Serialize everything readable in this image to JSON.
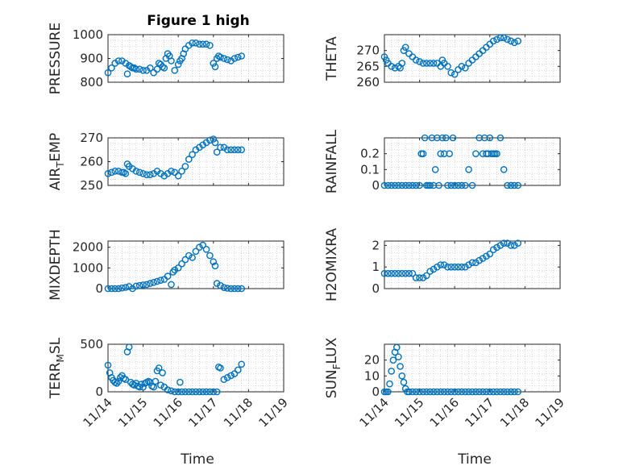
{
  "figure": {
    "title": "Figure 1 high",
    "xlabel": "Time",
    "colors": {
      "marker": "#0072BD",
      "axes": "#262626",
      "grid": "#b8b8b8"
    }
  },
  "chart_data": [
    {
      "type": "scatter",
      "ylabel": "PRESSURE",
      "ylim": [
        800,
        1000
      ],
      "yticks": [
        "800",
        "900",
        "1000"
      ],
      "xlim": [
        0,
        5
      ],
      "x": [
        0,
        0.1,
        0.2,
        0.3,
        0.4,
        0.5,
        0.55,
        0.6,
        0.65,
        0.7,
        0.75,
        0.8,
        0.9,
        1,
        1.1,
        1.2,
        1.3,
        1.4,
        1.45,
        1.5,
        1.55,
        1.6,
        1.65,
        1.7,
        1.75,
        1.8,
        1.9,
        2,
        2.05,
        2.1,
        2.15,
        2.2,
        2.3,
        2.4,
        2.5,
        2.6,
        2.7,
        2.8,
        2.9,
        3.0,
        3.05,
        3.1,
        3.15,
        3.2,
        3.3,
        3.4,
        3.5,
        3.6,
        3.7,
        3.8
      ],
      "values": [
        840,
        860,
        880,
        890,
        890,
        880,
        835,
        870,
        865,
        860,
        860,
        855,
        855,
        850,
        850,
        860,
        840,
        855,
        880,
        875,
        865,
        860,
        900,
        920,
        910,
        890,
        850,
        875,
        890,
        900,
        920,
        940,
        955,
        965,
        965,
        960,
        960,
        960,
        955,
        880,
        865,
        900,
        910,
        905,
        900,
        895,
        890,
        900,
        905,
        910
      ],
      "tick_labels_x": [
        "11/14",
        "11/15",
        "11/16",
        "11/17",
        "11/18",
        "11/19"
      ],
      "show_x_tick_labels": false
    },
    {
      "type": "scatter",
      "ylabel": "THETA",
      "ylim": [
        260,
        275
      ],
      "yticks": [
        "260",
        "265",
        "270"
      ],
      "xlim": [
        0,
        5
      ],
      "x": [
        0,
        0.05,
        0.1,
        0.2,
        0.3,
        0.4,
        0.45,
        0.5,
        0.55,
        0.6,
        0.7,
        0.8,
        0.9,
        1,
        1.1,
        1.2,
        1.3,
        1.4,
        1.5,
        1.6,
        1.65,
        1.7,
        1.8,
        1.9,
        2,
        2.1,
        2.2,
        2.3,
        2.4,
        2.5,
        2.6,
        2.7,
        2.8,
        2.9,
        3,
        3.1,
        3.2,
        3.3,
        3.4,
        3.5,
        3.6,
        3.7,
        3.8
      ],
      "values": [
        268,
        267,
        266,
        265,
        264.5,
        265,
        264.5,
        266,
        270,
        271,
        269,
        268,
        267,
        266.5,
        266,
        266,
        266,
        266,
        266,
        265,
        267,
        266,
        265,
        263,
        262.5,
        264,
        265,
        264.5,
        266,
        267,
        268,
        269,
        270,
        271,
        272,
        273,
        273.5,
        274,
        274,
        273.5,
        273,
        272.5,
        273
      ],
      "tick_labels_x": [
        "11/14",
        "11/15",
        "11/16",
        "11/17",
        "11/18",
        "11/19"
      ],
      "show_x_tick_labels": false
    },
    {
      "type": "scatter",
      "ylabel": "AIR_TEMP",
      "ylabel_main": "AIR",
      "ylabel_sub": "T",
      "ylabel_rest": "EMP",
      "ylim": [
        250,
        270
      ],
      "yticks": [
        "250",
        "260",
        "270"
      ],
      "xlim": [
        0,
        5
      ],
      "x": [
        0,
        0.1,
        0.2,
        0.3,
        0.4,
        0.45,
        0.5,
        0.55,
        0.6,
        0.7,
        0.8,
        0.9,
        1,
        1.1,
        1.2,
        1.3,
        1.4,
        1.5,
        1.6,
        1.7,
        1.8,
        1.9,
        2,
        2.1,
        2.2,
        2.3,
        2.4,
        2.5,
        2.6,
        2.7,
        2.8,
        2.9,
        3,
        3.05,
        3.1,
        3.2,
        3.3,
        3.4,
        3.5,
        3.6,
        3.7,
        3.8
      ],
      "values": [
        255,
        255.5,
        256,
        256,
        255.5,
        255.5,
        255,
        259,
        258,
        257,
        256,
        255.5,
        255,
        254.5,
        254.5,
        255,
        256,
        255,
        254,
        255,
        256,
        255.5,
        254,
        256,
        258,
        261,
        263,
        265,
        266,
        267,
        268,
        269,
        269.5,
        268,
        264,
        266,
        266,
        265,
        265,
        265,
        265,
        265
      ],
      "tick_labels_x": [
        "11/14",
        "11/15",
        "11/16",
        "11/17",
        "11/18",
        "11/19"
      ],
      "show_x_tick_labels": false
    },
    {
      "type": "scatter",
      "ylabel": "RAINFALL",
      "ylim": [
        0,
        0.3
      ],
      "yticks": [
        "0",
        "0.1",
        "0.2"
      ],
      "xlim": [
        0,
        5
      ],
      "x": [
        0,
        0.1,
        0.2,
        0.3,
        0.4,
        0.5,
        0.6,
        0.7,
        0.8,
        0.9,
        1.0,
        1.05,
        1.1,
        1.15,
        1.2,
        1.25,
        1.3,
        1.35,
        1.4,
        1.45,
        1.5,
        1.55,
        1.6,
        1.65,
        1.7,
        1.75,
        1.8,
        1.85,
        1.9,
        1.95,
        2.0,
        2.1,
        2.2,
        2.3,
        2.4,
        2.5,
        2.6,
        2.7,
        2.8,
        2.85,
        2.9,
        2.95,
        3.0,
        3.05,
        3.1,
        3.15,
        3.2,
        3.3,
        3.4,
        3.5,
        3.6,
        3.7,
        3.8
      ],
      "values": [
        0,
        0,
        0,
        0,
        0,
        0,
        0,
        0,
        0,
        0,
        0,
        0.2,
        0.2,
        0.3,
        0,
        0,
        0,
        0.3,
        0,
        0.1,
        0.3,
        0,
        0.2,
        0.3,
        0.2,
        0.3,
        0,
        0.2,
        0,
        0.3,
        0,
        0,
        0,
        0,
        0.1,
        0,
        0.2,
        0.3,
        0.2,
        0.3,
        0.2,
        0.2,
        0.3,
        0.2,
        0.2,
        0.2,
        0.2,
        0.3,
        0.1,
        0,
        0,
        0,
        0
      ],
      "tick_labels_x": [
        "11/14",
        "11/15",
        "11/16",
        "11/17",
        "11/18",
        "11/19"
      ],
      "show_x_tick_labels": false
    },
    {
      "type": "scatter",
      "ylabel": "MIXDEPTH",
      "ylim": [
        0,
        2300
      ],
      "yticks": [
        "0",
        "1000",
        "2000"
      ],
      "xlim": [
        0,
        5
      ],
      "x": [
        0,
        0.1,
        0.2,
        0.3,
        0.4,
        0.5,
        0.6,
        0.7,
        0.8,
        0.9,
        1,
        1.1,
        1.2,
        1.3,
        1.4,
        1.5,
        1.6,
        1.7,
        1.8,
        1.85,
        1.9,
        2,
        2.1,
        2.2,
        2.3,
        2.4,
        2.5,
        2.6,
        2.7,
        2.8,
        2.9,
        3.0,
        3.05,
        3.1,
        3.2,
        3.3,
        3.4,
        3.5,
        3.6,
        3.7,
        3.8
      ],
      "values": [
        0,
        0,
        0,
        0,
        30,
        60,
        100,
        0,
        120,
        150,
        180,
        200,
        250,
        300,
        350,
        400,
        450,
        600,
        200,
        800,
        900,
        1000,
        1200,
        1400,
        1600,
        1500,
        1800,
        2000,
        2100,
        1900,
        1600,
        1300,
        1100,
        250,
        150,
        50,
        20,
        0,
        0,
        0,
        0
      ],
      "tick_labels_x": [
        "11/14",
        "11/15",
        "11/16",
        "11/17",
        "11/18",
        "11/19"
      ],
      "show_x_tick_labels": false
    },
    {
      "type": "scatter",
      "ylabel": "H2OMIXRA",
      "ylim": [
        0,
        2.2
      ],
      "yticks": [
        "0",
        "1",
        "2"
      ],
      "xlim": [
        0,
        5
      ],
      "x": [
        0,
        0.1,
        0.2,
        0.3,
        0.4,
        0.5,
        0.6,
        0.7,
        0.8,
        0.9,
        1,
        1.1,
        1.2,
        1.3,
        1.4,
        1.5,
        1.6,
        1.7,
        1.8,
        1.9,
        2,
        2.1,
        2.2,
        2.3,
        2.4,
        2.5,
        2.6,
        2.7,
        2.8,
        2.9,
        3,
        3.1,
        3.2,
        3.3,
        3.4,
        3.5,
        3.6,
        3.7,
        3.8
      ],
      "values": [
        0.7,
        0.7,
        0.7,
        0.7,
        0.7,
        0.7,
        0.7,
        0.7,
        0.7,
        0.5,
        0.5,
        0.5,
        0.6,
        0.8,
        0.9,
        1.0,
        1.1,
        1.1,
        1.0,
        1.0,
        1.0,
        1.0,
        1.0,
        1.0,
        1.1,
        1.2,
        1.2,
        1.3,
        1.4,
        1.5,
        1.6,
        1.8,
        1.9,
        2.0,
        2.1,
        2.1,
        2.0,
        2.0,
        2.1
      ],
      "tick_labels_x": [
        "11/14",
        "11/15",
        "11/16",
        "11/17",
        "11/18",
        "11/19"
      ],
      "show_x_tick_labels": false
    },
    {
      "type": "scatter",
      "ylabel": "TERR_MSL",
      "ylabel_main": "TERR",
      "ylabel_sub": "M",
      "ylabel_rest": "SL",
      "ylim": [
        0,
        500
      ],
      "yticks": [
        "0",
        "500"
      ],
      "xlim": [
        0,
        5
      ],
      "x": [
        0,
        0.05,
        0.1,
        0.15,
        0.2,
        0.25,
        0.3,
        0.35,
        0.4,
        0.45,
        0.5,
        0.55,
        0.6,
        0.65,
        0.7,
        0.75,
        0.8,
        0.85,
        0.9,
        0.95,
        1.0,
        1.05,
        1.1,
        1.15,
        1.2,
        1.25,
        1.3,
        1.35,
        1.4,
        1.45,
        1.5,
        1.55,
        1.6,
        1.7,
        1.8,
        1.9,
        2.0,
        2.05,
        2.1,
        2.2,
        2.3,
        2.4,
        2.5,
        2.6,
        2.7,
        2.8,
        2.9,
        3.0,
        3.1,
        3.15,
        3.2,
        3.3,
        3.4,
        3.5,
        3.6,
        3.7,
        3.8
      ],
      "values": [
        280,
        200,
        150,
        120,
        100,
        90,
        110,
        150,
        170,
        140,
        130,
        420,
        470,
        100,
        80,
        70,
        90,
        60,
        50,
        80,
        50,
        90,
        100,
        110,
        100,
        60,
        50,
        110,
        220,
        250,
        70,
        200,
        50,
        20,
        10,
        0,
        0,
        100,
        0,
        0,
        0,
        0,
        0,
        0,
        0,
        0,
        0,
        0,
        0,
        260,
        250,
        130,
        150,
        170,
        190,
        230,
        290
      ],
      "tick_labels_x": [
        "11/14",
        "11/15",
        "11/16",
        "11/17",
        "11/18",
        "11/19"
      ],
      "show_x_tick_labels": true
    },
    {
      "type": "scatter",
      "ylabel": "SUN_FLUX",
      "ylabel_main": "SUN",
      "ylabel_sub": "F",
      "ylabel_rest": "LUX",
      "ylim": [
        0,
        30
      ],
      "yticks": [
        "0",
        "10",
        "20"
      ],
      "xlim": [
        0,
        5
      ],
      "x": [
        0,
        0.05,
        0.1,
        0.15,
        0.2,
        0.25,
        0.3,
        0.35,
        0.4,
        0.45,
        0.5,
        0.55,
        0.6,
        0.65,
        0.7,
        0.8,
        0.9,
        1,
        1.1,
        1.2,
        1.3,
        1.4,
        1.5,
        1.6,
        1.7,
        1.8,
        1.9,
        2,
        2.1,
        2.2,
        2.3,
        2.4,
        2.5,
        2.6,
        2.7,
        2.8,
        2.9,
        3,
        3.1,
        3.2,
        3.3,
        3.4,
        3.5,
        3.6,
        3.7,
        3.8
      ],
      "values": [
        0,
        0,
        0,
        5,
        13,
        20,
        25,
        28,
        22,
        16,
        10,
        6,
        2,
        0,
        0,
        0,
        0,
        0,
        0,
        0,
        0,
        0,
        0,
        0,
        0,
        0,
        0,
        0,
        0,
        0,
        0,
        0,
        0,
        0,
        0,
        0,
        0,
        0,
        0,
        0,
        0,
        0,
        0,
        0,
        0,
        0
      ],
      "tick_labels_x": [
        "11/14",
        "11/15",
        "11/16",
        "11/17",
        "11/18",
        "11/19"
      ],
      "show_x_tick_labels": true
    }
  ]
}
